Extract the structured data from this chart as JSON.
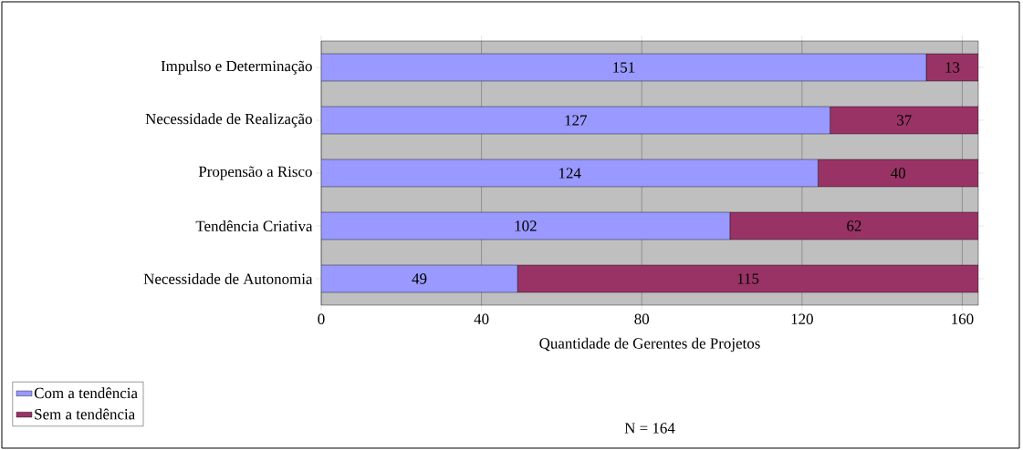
{
  "chart_data": {
    "type": "bar",
    "orientation": "horizontal",
    "stacked": true,
    "xlabel": "Quantidade de Gerentes de Projetos",
    "annotations": [
      "N = 164"
    ],
    "categories": [
      "Impulso e Determinação",
      "Necessidade de Realização",
      "Propensão a Risco",
      "Tendência Criativa",
      "Necessidade de Autonomia"
    ],
    "series": [
      {
        "name": "Com a tendência",
        "color": "#9999ff",
        "values": [
          151,
          127,
          124,
          102,
          49
        ]
      },
      {
        "name": "Sem a tendência",
        "color": "#993366",
        "values": [
          13,
          37,
          40,
          62,
          115
        ]
      }
    ],
    "xlim": [
      0,
      164
    ],
    "xticks": [
      0,
      40,
      80,
      120,
      160
    ],
    "grid": "x",
    "legend": "bottom left",
    "data_labels": true
  }
}
